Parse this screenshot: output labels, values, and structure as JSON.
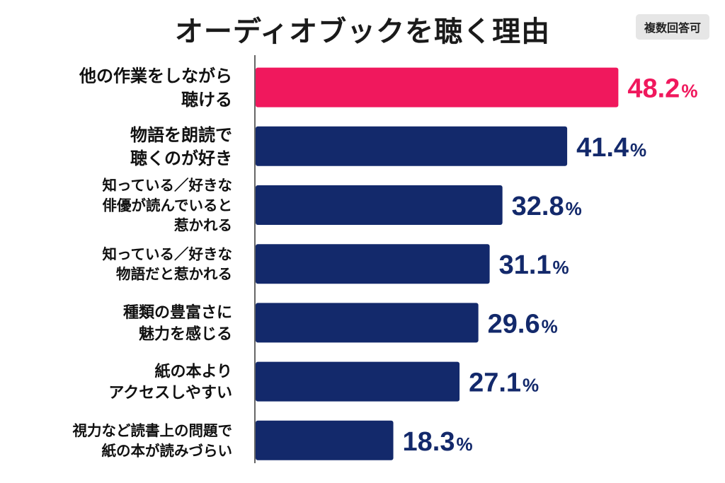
{
  "chart_data": {
    "type": "bar",
    "orientation": "horizontal",
    "title": "オーディオブックを聴く理由",
    "note": "複数回答可",
    "unit": "%",
    "categories": [
      [
        "他の作業をしながら",
        "聴ける"
      ],
      [
        "物語を朗読で",
        "聴くのが好き"
      ],
      [
        "知っている／好きな",
        "俳優が読んでいると",
        "惹かれる"
      ],
      [
        "知っている／好きな",
        "物語だと惹かれる"
      ],
      [
        "種類の豊富さに",
        "魅力を感じる"
      ],
      [
        "紙の本より",
        "アクセスしやすい"
      ],
      [
        "視力など読書上の問題で",
        "紙の本が読みづらい"
      ]
    ],
    "values": [
      48.2,
      41.4,
      32.8,
      31.1,
      29.6,
      27.1,
      18.3
    ],
    "value_labels": [
      "48.2",
      "41.4",
      "32.8",
      "31.1",
      "29.6",
      "27.1",
      "18.3"
    ],
    "colors": {
      "highlight": "#f0185d",
      "bar": "#13296b",
      "axis": "#333333"
    },
    "highlight_index": 0,
    "grid": false,
    "legend": "none"
  }
}
